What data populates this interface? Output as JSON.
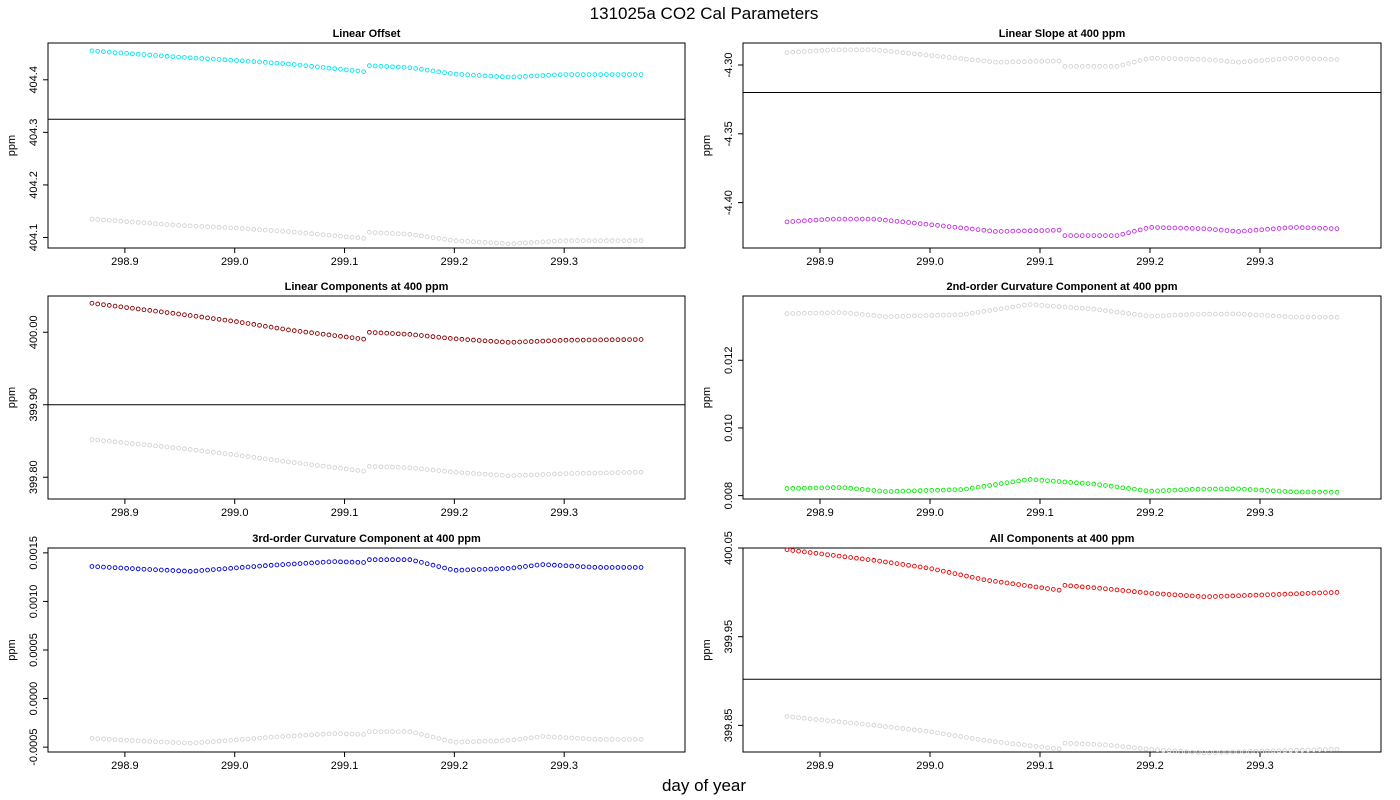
{
  "figure": {
    "title": "131025a   CO2 Cal Parameters",
    "xlabel": "day of year"
  },
  "chart_data": [
    {
      "type": "scatter",
      "title": "Linear Offset",
      "ylabel": "ppm",
      "xlim": [
        298.83,
        299.41
      ],
      "ylim": [
        404.08,
        404.47
      ],
      "yticks": [
        404.1,
        404.2,
        404.3,
        404.4
      ],
      "yticklabels": [
        "404.1",
        "404.2",
        "404.3",
        "404.4"
      ],
      "xticks": [
        298.9,
        299.0,
        299.1,
        299.2,
        299.3
      ],
      "xticklabels": [
        "298.9",
        "299.0",
        "299.1",
        "299.2",
        "299.3"
      ],
      "hline": 404.325,
      "series": [
        {
          "color": "#00e5ee",
          "x_start": 298.87,
          "x_end": 299.37,
          "y_keys": [
            [
              298.87,
              404.455
            ],
            [
              298.95,
              404.443
            ],
            [
              299.0,
              404.437
            ],
            [
              299.05,
              404.43
            ],
            [
              299.12,
              404.415
            ],
            [
              299.122,
              404.427
            ],
            [
              299.16,
              404.423
            ],
            [
              299.2,
              404.411
            ],
            [
              299.25,
              404.405
            ],
            [
              299.3,
              404.41
            ],
            [
              299.37,
              404.41
            ]
          ]
        },
        {
          "color": "#d3d3d3",
          "x_start": 298.87,
          "x_end": 299.37,
          "y_keys": [
            [
              298.87,
              404.135
            ],
            [
              298.95,
              404.123
            ],
            [
              299.0,
              404.118
            ],
            [
              299.05,
              404.111
            ],
            [
              299.12,
              404.098
            ],
            [
              299.122,
              404.11
            ],
            [
              299.16,
              404.106
            ],
            [
              299.2,
              404.094
            ],
            [
              299.25,
              404.088
            ],
            [
              299.3,
              404.094
            ],
            [
              299.37,
              404.094
            ]
          ]
        }
      ]
    },
    {
      "type": "scatter",
      "title": "Linear Slope at 400 ppm",
      "ylabel": "ppm",
      "xlim": [
        298.83,
        299.41
      ],
      "ylim": [
        -4.433,
        -4.284
      ],
      "yticks": [
        -4.4,
        -4.35,
        -4.3
      ],
      "yticklabels": [
        "-4.40",
        "-4.35",
        "-4.30"
      ],
      "xticks": [
        298.9,
        299.0,
        299.1,
        299.2,
        299.3
      ],
      "xticklabels": [
        "298.9",
        "299.0",
        "299.1",
        "299.2",
        "299.3"
      ],
      "hline": -4.32,
      "series": [
        {
          "color": "#c030e0",
          "x_start": 298.87,
          "x_end": 299.37,
          "y_keys": [
            [
              298.87,
              -4.414
            ],
            [
              298.91,
              -4.412
            ],
            [
              298.95,
              -4.412
            ],
            [
              299.0,
              -4.416
            ],
            [
              299.06,
              -4.421
            ],
            [
              299.12,
              -4.42
            ],
            [
              299.122,
              -4.424
            ],
            [
              299.17,
              -4.424
            ],
            [
              299.2,
              -4.418
            ],
            [
              299.25,
              -4.419
            ],
            [
              299.28,
              -4.421
            ],
            [
              299.33,
              -4.418
            ],
            [
              299.37,
              -4.419
            ]
          ]
        },
        {
          "color": "#d3d3d3",
          "x_start": 298.87,
          "x_end": 299.37,
          "y_keys": [
            [
              298.87,
              -4.291
            ],
            [
              298.91,
              -4.289
            ],
            [
              298.95,
              -4.289
            ],
            [
              299.0,
              -4.293
            ],
            [
              299.06,
              -4.298
            ],
            [
              299.12,
              -4.297
            ],
            [
              299.122,
              -4.301
            ],
            [
              299.17,
              -4.301
            ],
            [
              299.2,
              -4.295
            ],
            [
              299.25,
              -4.296
            ],
            [
              299.28,
              -4.298
            ],
            [
              299.33,
              -4.295
            ],
            [
              299.37,
              -4.296
            ]
          ]
        }
      ]
    },
    {
      "type": "scatter",
      "title": "Linear Components at 400 ppm",
      "ylabel": "ppm",
      "xlim": [
        298.83,
        299.41
      ],
      "ylim": [
        399.77,
        400.05
      ],
      "yticks": [
        399.8,
        399.9,
        400.0
      ],
      "yticklabels": [
        "399.80",
        "399.90",
        "400.00"
      ],
      "xticks": [
        298.9,
        299.0,
        299.1,
        299.2,
        299.3
      ],
      "xticklabels": [
        "298.9",
        "299.0",
        "299.1",
        "299.2",
        "299.3"
      ],
      "hline": 399.9,
      "series": [
        {
          "color": "#8b0000",
          "x_start": 298.87,
          "x_end": 299.37,
          "y_keys": [
            [
              298.87,
              400.04
            ],
            [
              298.95,
              400.025
            ],
            [
              299.0,
              400.015
            ],
            [
              299.05,
              400.003
            ],
            [
              299.12,
              399.99
            ],
            [
              299.122,
              400.0
            ],
            [
              299.16,
              399.997
            ],
            [
              299.2,
              399.991
            ],
            [
              299.25,
              399.986
            ],
            [
              299.3,
              399.989
            ],
            [
              299.37,
              399.99
            ]
          ]
        },
        {
          "color": "#d3d3d3",
          "x_start": 298.87,
          "x_end": 299.37,
          "y_keys": [
            [
              298.87,
              399.852
            ],
            [
              298.95,
              399.84
            ],
            [
              299.0,
              399.831
            ],
            [
              299.05,
              399.821
            ],
            [
              299.12,
              399.808
            ],
            [
              299.122,
              399.815
            ],
            [
              299.16,
              399.813
            ],
            [
              299.2,
              399.807
            ],
            [
              299.25,
              399.802
            ],
            [
              299.3,
              399.805
            ],
            [
              299.37,
              399.807
            ]
          ]
        }
      ]
    },
    {
      "type": "scatter",
      "title": "2nd-order Curvature Component at 400 ppm",
      "ylabel": "ppm",
      "xlim": [
        298.83,
        299.41
      ],
      "ylim": [
        0.0079,
        0.0139
      ],
      "yticks": [
        0.008,
        0.01,
        0.012
      ],
      "yticklabels": [
        "0.008",
        "0.010",
        "0.012"
      ],
      "xticks": [
        298.9,
        299.0,
        299.1,
        299.2,
        299.3
      ],
      "xticklabels": [
        "298.9",
        "299.0",
        "299.1",
        "299.2",
        "299.3"
      ],
      "series": [
        {
          "color": "#00ee00",
          "x_start": 298.87,
          "x_end": 299.37,
          "y_keys": [
            [
              298.87,
              0.00821
            ],
            [
              298.92,
              0.00824
            ],
            [
              298.96,
              0.00812
            ],
            [
              299.03,
              0.00818
            ],
            [
              299.09,
              0.00848
            ],
            [
              299.15,
              0.00834
            ],
            [
              299.2,
              0.00813
            ],
            [
              299.24,
              0.00819
            ],
            [
              299.28,
              0.0082
            ],
            [
              299.33,
              0.00811
            ],
            [
              299.37,
              0.0081
            ]
          ]
        },
        {
          "color": "#d3d3d3",
          "x_start": 298.87,
          "x_end": 299.37,
          "y_keys": [
            [
              298.87,
              0.01338
            ],
            [
              298.92,
              0.01341
            ],
            [
              298.96,
              0.01329
            ],
            [
              299.03,
              0.01335
            ],
            [
              299.09,
              0.01365
            ],
            [
              299.15,
              0.01351
            ],
            [
              299.2,
              0.0133
            ],
            [
              299.24,
              0.01336
            ],
            [
              299.28,
              0.01337
            ],
            [
              299.33,
              0.01328
            ],
            [
              299.37,
              0.01327
            ]
          ]
        }
      ]
    },
    {
      "type": "scatter",
      "title": "3rd-order Curvature Component at 400 ppm",
      "ylabel": "ppm",
      "xlim": [
        298.83,
        299.41
      ],
      "ylim": [
        -0.00055,
        0.00155
      ],
      "yticks": [
        -0.0005,
        0.0,
        0.0005,
        0.001,
        0.0015
      ],
      "yticklabels": [
        "-0.0005",
        "0.0000",
        "0.0005",
        "0.0010",
        "0.0015"
      ],
      "xticks": [
        298.9,
        299.0,
        299.1,
        299.2,
        299.3
      ],
      "xticklabels": [
        "298.9",
        "299.0",
        "299.1",
        "299.2",
        "299.3"
      ],
      "series": [
        {
          "color": "#0000dd",
          "x_start": 298.87,
          "x_end": 299.37,
          "y_keys": [
            [
              298.87,
              0.00136
            ],
            [
              298.92,
              0.00133
            ],
            [
              298.96,
              0.00131
            ],
            [
              299.03,
              0.00137
            ],
            [
              299.09,
              0.00141
            ],
            [
              299.12,
              0.0014
            ],
            [
              299.122,
              0.00143
            ],
            [
              299.16,
              0.00143
            ],
            [
              299.2,
              0.00132
            ],
            [
              299.25,
              0.00134
            ],
            [
              299.28,
              0.00138
            ],
            [
              299.33,
              0.00135
            ],
            [
              299.37,
              0.00135
            ]
          ]
        },
        {
          "color": "#d3d3d3",
          "x_start": 298.87,
          "x_end": 299.37,
          "y_keys": [
            [
              298.87,
              -0.00041
            ],
            [
              298.92,
              -0.00044
            ],
            [
              298.96,
              -0.00046
            ],
            [
              299.03,
              -0.0004
            ],
            [
              299.09,
              -0.00036
            ],
            [
              299.12,
              -0.00037
            ],
            [
              299.122,
              -0.00034
            ],
            [
              299.16,
              -0.00034
            ],
            [
              299.2,
              -0.00045
            ],
            [
              299.25,
              -0.00043
            ],
            [
              299.28,
              -0.00039
            ],
            [
              299.33,
              -0.00042
            ],
            [
              299.37,
              -0.00042
            ]
          ]
        }
      ]
    },
    {
      "type": "scatter",
      "title": "All Components at 400 ppm",
      "ylabel": "ppm",
      "xlim": [
        298.83,
        299.41
      ],
      "ylim": [
        399.82,
        400.05
      ],
      "yticks": [
        399.85,
        399.95,
        400.05
      ],
      "yticklabels": [
        "399.85",
        "399.95",
        "400.05"
      ],
      "xticks": [
        298.9,
        299.0,
        299.1,
        299.2,
        299.3
      ],
      "xticklabels": [
        "298.9",
        "299.0",
        "299.1",
        "299.2",
        "299.3"
      ],
      "hline": 399.902,
      "series": [
        {
          "color": "#ee0000",
          "x_start": 298.87,
          "x_end": 299.37,
          "y_keys": [
            [
              298.87,
              400.048
            ],
            [
              298.95,
              400.036
            ],
            [
              299.0,
              400.027
            ],
            [
              299.05,
              400.014
            ],
            [
              299.12,
              400.002
            ],
            [
              299.122,
              400.008
            ],
            [
              299.16,
              400.004
            ],
            [
              299.2,
              399.999
            ],
            [
              299.25,
              399.995
            ],
            [
              299.3,
              399.997
            ],
            [
              299.37,
              400.0
            ]
          ]
        },
        {
          "color": "#d3d3d3",
          "x_start": 298.87,
          "x_end": 299.37,
          "y_keys": [
            [
              298.87,
              399.86
            ],
            [
              298.95,
              399.85
            ],
            [
              299.0,
              399.843
            ],
            [
              299.05,
              399.833
            ],
            [
              299.12,
              399.823
            ],
            [
              299.122,
              399.83
            ],
            [
              299.16,
              399.828
            ],
            [
              299.2,
              399.823
            ],
            [
              299.25,
              399.819
            ],
            [
              299.3,
              399.821
            ],
            [
              299.37,
              399.823
            ]
          ]
        }
      ]
    }
  ]
}
